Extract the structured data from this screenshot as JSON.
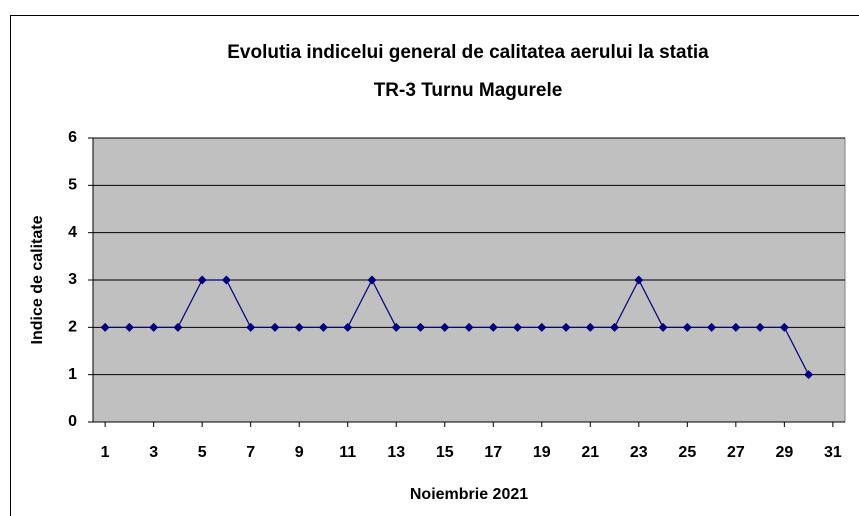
{
  "chart_data": {
    "type": "line",
    "title": [
      "Evolutia indicelui general de calitatea aerului la statia",
      "TR-3 Turnu Magurele"
    ],
    "x_label": "Noiembrie 2021",
    "y_label": "Indice de calitate",
    "x": [
      1,
      2,
      3,
      4,
      5,
      6,
      7,
      8,
      9,
      10,
      11,
      12,
      13,
      14,
      15,
      16,
      17,
      18,
      19,
      20,
      21,
      22,
      23,
      24,
      25,
      26,
      27,
      28,
      29,
      30
    ],
    "series": [
      {
        "color": "#000080",
        "values": [
          2,
          2,
          2,
          2,
          3,
          3,
          2,
          2,
          2,
          2,
          2,
          3,
          2,
          2,
          2,
          2,
          2,
          2,
          2,
          2,
          2,
          2,
          3,
          2,
          2,
          2,
          2,
          2,
          2,
          1
        ]
      }
    ],
    "xlim": [
      0.5,
      31.5
    ],
    "xticks": [
      1,
      3,
      5,
      7,
      9,
      11,
      13,
      15,
      17,
      19,
      21,
      23,
      25,
      27,
      29,
      31
    ],
    "ylim": [
      0,
      6
    ],
    "yticks": [
      0,
      1,
      2,
      3,
      4,
      5,
      6
    ],
    "grid": true,
    "plot_background": "#c0c0c0"
  }
}
